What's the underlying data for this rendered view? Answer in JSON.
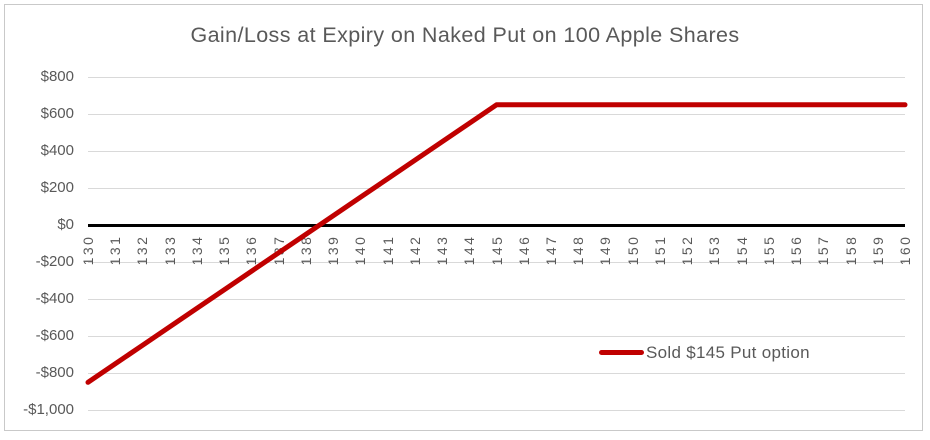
{
  "window": {
    "background_color": "#ffffff",
    "border_color": "#c9c9c9"
  },
  "chart_data": {
    "type": "line",
    "title": "Gain/Loss at Expiry on Naked Put on 100 Apple Shares",
    "xlabel": "",
    "ylabel": "",
    "categories": [
      130,
      131,
      132,
      133,
      134,
      135,
      136,
      137,
      138,
      139,
      140,
      141,
      142,
      143,
      144,
      145,
      146,
      147,
      148,
      149,
      150,
      151,
      152,
      153,
      154,
      155,
      156,
      157,
      158,
      159,
      160
    ],
    "series": [
      {
        "name": "Sold $145 Put option",
        "color": "#C00000",
        "values": [
          -850,
          -750,
          -650,
          -550,
          -450,
          -350,
          -250,
          -150,
          -50,
          50,
          150,
          250,
          350,
          450,
          550,
          650,
          650,
          650,
          650,
          650,
          650,
          650,
          650,
          650,
          650,
          650,
          650,
          650,
          650,
          650,
          650
        ]
      }
    ],
    "ylim": [
      -1000,
      800
    ],
    "ytick_step": 200,
    "ytick_labels": [
      "$800",
      "$600",
      "$400",
      "$200",
      "$0",
      "-$200",
      "-$400",
      "-$600",
      "-$800",
      "-$1,000"
    ],
    "grid": true,
    "gridline_color": "#d9d9d9",
    "zero_line_color": "#000000",
    "text_color": "#595959",
    "legend_position": "inside-lower-right",
    "legend": {
      "label": "Sold $145 Put option",
      "marker_color": "#C00000"
    }
  }
}
